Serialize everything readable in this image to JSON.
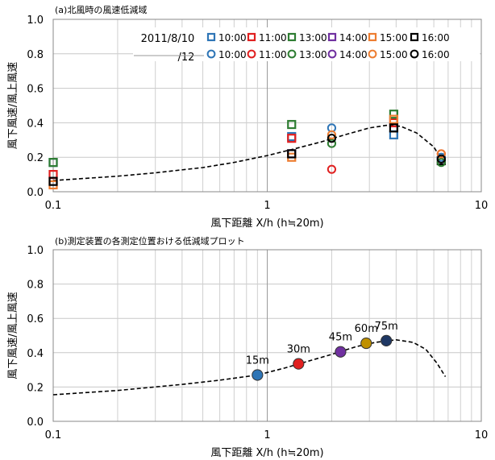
{
  "chart_data": [
    {
      "type": "scatter",
      "title": "(a)北風時の風速低減域",
      "xlabel": "風下距離 X/h (h≒20m)",
      "ylabel": "風下風速/風上風速",
      "xscale": "log",
      "xlim": [
        0.1,
        10
      ],
      "ylim": [
        0,
        1.0
      ],
      "x_ticks": [
        "0.1",
        "1",
        "10"
      ],
      "y_ticks": [
        "0.0",
        "0.2",
        "0.4",
        "0.6",
        "0.8",
        "1.0"
      ],
      "grid": true,
      "legend_title": "2011/8/10\n/12",
      "legend_title_lines": [
        "2011/8/10",
        "/12"
      ],
      "legend_position": "top-right",
      "series": [
        {
          "name": "10:00",
          "marker": "square",
          "color": "#2E75B6",
          "points": [
            [
              0.1,
              0.17
            ],
            [
              1.3,
              0.32
            ],
            [
              3.9,
              0.33
            ]
          ]
        },
        {
          "name": "11:00",
          "marker": "square",
          "color": "#E02020",
          "points": [
            [
              0.1,
              0.1
            ],
            [
              1.3,
              0.31
            ],
            [
              3.9,
              0.4
            ]
          ]
        },
        {
          "name": "13:00",
          "marker": "square",
          "color": "#2E7D32",
          "points": [
            [
              0.1,
              0.17
            ],
            [
              1.3,
              0.39
            ],
            [
              3.9,
              0.45
            ]
          ]
        },
        {
          "name": "14:00",
          "marker": "square",
          "color": "#7030A0",
          "points": [
            [
              1.3,
              0.22
            ]
          ]
        },
        {
          "name": "15:00",
          "marker": "square",
          "color": "#ED7D31",
          "points": [
            [
              0.1,
              0.04
            ],
            [
              1.3,
              0.2
            ],
            [
              3.9,
              0.42
            ]
          ]
        },
        {
          "name": "16:00",
          "marker": "square",
          "color": "#000000",
          "points": [
            [
              0.1,
              0.06
            ],
            [
              1.3,
              0.22
            ],
            [
              3.9,
              0.37
            ],
            [
              6.5,
              0.18
            ]
          ]
        },
        {
          "name": "10:00",
          "marker": "circle",
          "color": "#2E75B6",
          "points": [
            [
              2.0,
              0.37
            ],
            [
              6.5,
              0.2
            ]
          ]
        },
        {
          "name": "11:00",
          "marker": "circle",
          "color": "#E02020",
          "points": [
            [
              2.0,
              0.13
            ],
            [
              6.5,
              0.22
            ]
          ]
        },
        {
          "name": "13:00",
          "marker": "circle",
          "color": "#2E7D32",
          "points": [
            [
              2.0,
              0.28
            ],
            [
              6.5,
              0.17
            ]
          ]
        },
        {
          "name": "14:00",
          "marker": "circle",
          "color": "#7030A0",
          "points": []
        },
        {
          "name": "15:00",
          "marker": "circle",
          "color": "#ED7D31",
          "points": [
            [
              2.0,
              0.33
            ],
            [
              6.5,
              0.22
            ]
          ]
        },
        {
          "name": "16:00",
          "marker": "circle",
          "color": "#000000",
          "points": [
            [
              2.0,
              0.31
            ],
            [
              6.5,
              0.19
            ]
          ]
        }
      ],
      "curve": {
        "style": "dashed",
        "points": [
          [
            0.1,
            0.065
          ],
          [
            0.2,
            0.09
          ],
          [
            0.3,
            0.11
          ],
          [
            0.5,
            0.14
          ],
          [
            0.7,
            0.17
          ],
          [
            1.0,
            0.21
          ],
          [
            1.3,
            0.245
          ],
          [
            1.8,
            0.29
          ],
          [
            2.3,
            0.33
          ],
          [
            3.0,
            0.37
          ],
          [
            3.6,
            0.385
          ],
          [
            4.2,
            0.38
          ],
          [
            5.0,
            0.34
          ],
          [
            6.0,
            0.26
          ],
          [
            6.5,
            0.19
          ]
        ]
      }
    },
    {
      "type": "scatter",
      "title": "(b)測定装置の各測定位置おける低減域プロット",
      "xlabel": "風下距離 X/h (h≒20m)",
      "ylabel": "風下風速/風上風速",
      "xscale": "log",
      "xlim": [
        0.1,
        10
      ],
      "ylim": [
        0,
        1.0
      ],
      "x_ticks": [
        "0.1",
        "1",
        "10"
      ],
      "y_ticks": [
        "0.0",
        "0.2",
        "0.4",
        "0.6",
        "0.8",
        "1.0"
      ],
      "grid": true,
      "points": [
        {
          "label": "15m",
          "x": 0.9,
          "y": 0.27,
          "color": "#2E75B6"
        },
        {
          "label": "30m",
          "x": 1.4,
          "y": 0.335,
          "color": "#E02020"
        },
        {
          "label": "45m",
          "x": 2.2,
          "y": 0.405,
          "color": "#7030A0"
        },
        {
          "label": "60m",
          "x": 2.9,
          "y": 0.455,
          "color": "#BF9000"
        },
        {
          "label": "75m",
          "x": 3.6,
          "y": 0.47,
          "color": "#1F3864"
        }
      ],
      "curve": {
        "style": "dashed",
        "points": [
          [
            0.1,
            0.155
          ],
          [
            0.2,
            0.18
          ],
          [
            0.4,
            0.215
          ],
          [
            0.6,
            0.24
          ],
          [
            0.9,
            0.27
          ],
          [
            1.2,
            0.31
          ],
          [
            1.5,
            0.345
          ],
          [
            2.0,
            0.39
          ],
          [
            2.6,
            0.435
          ],
          [
            3.2,
            0.46
          ],
          [
            4.0,
            0.475
          ],
          [
            4.8,
            0.46
          ],
          [
            5.5,
            0.42
          ],
          [
            6.2,
            0.34
          ],
          [
            6.8,
            0.26
          ]
        ]
      }
    }
  ]
}
